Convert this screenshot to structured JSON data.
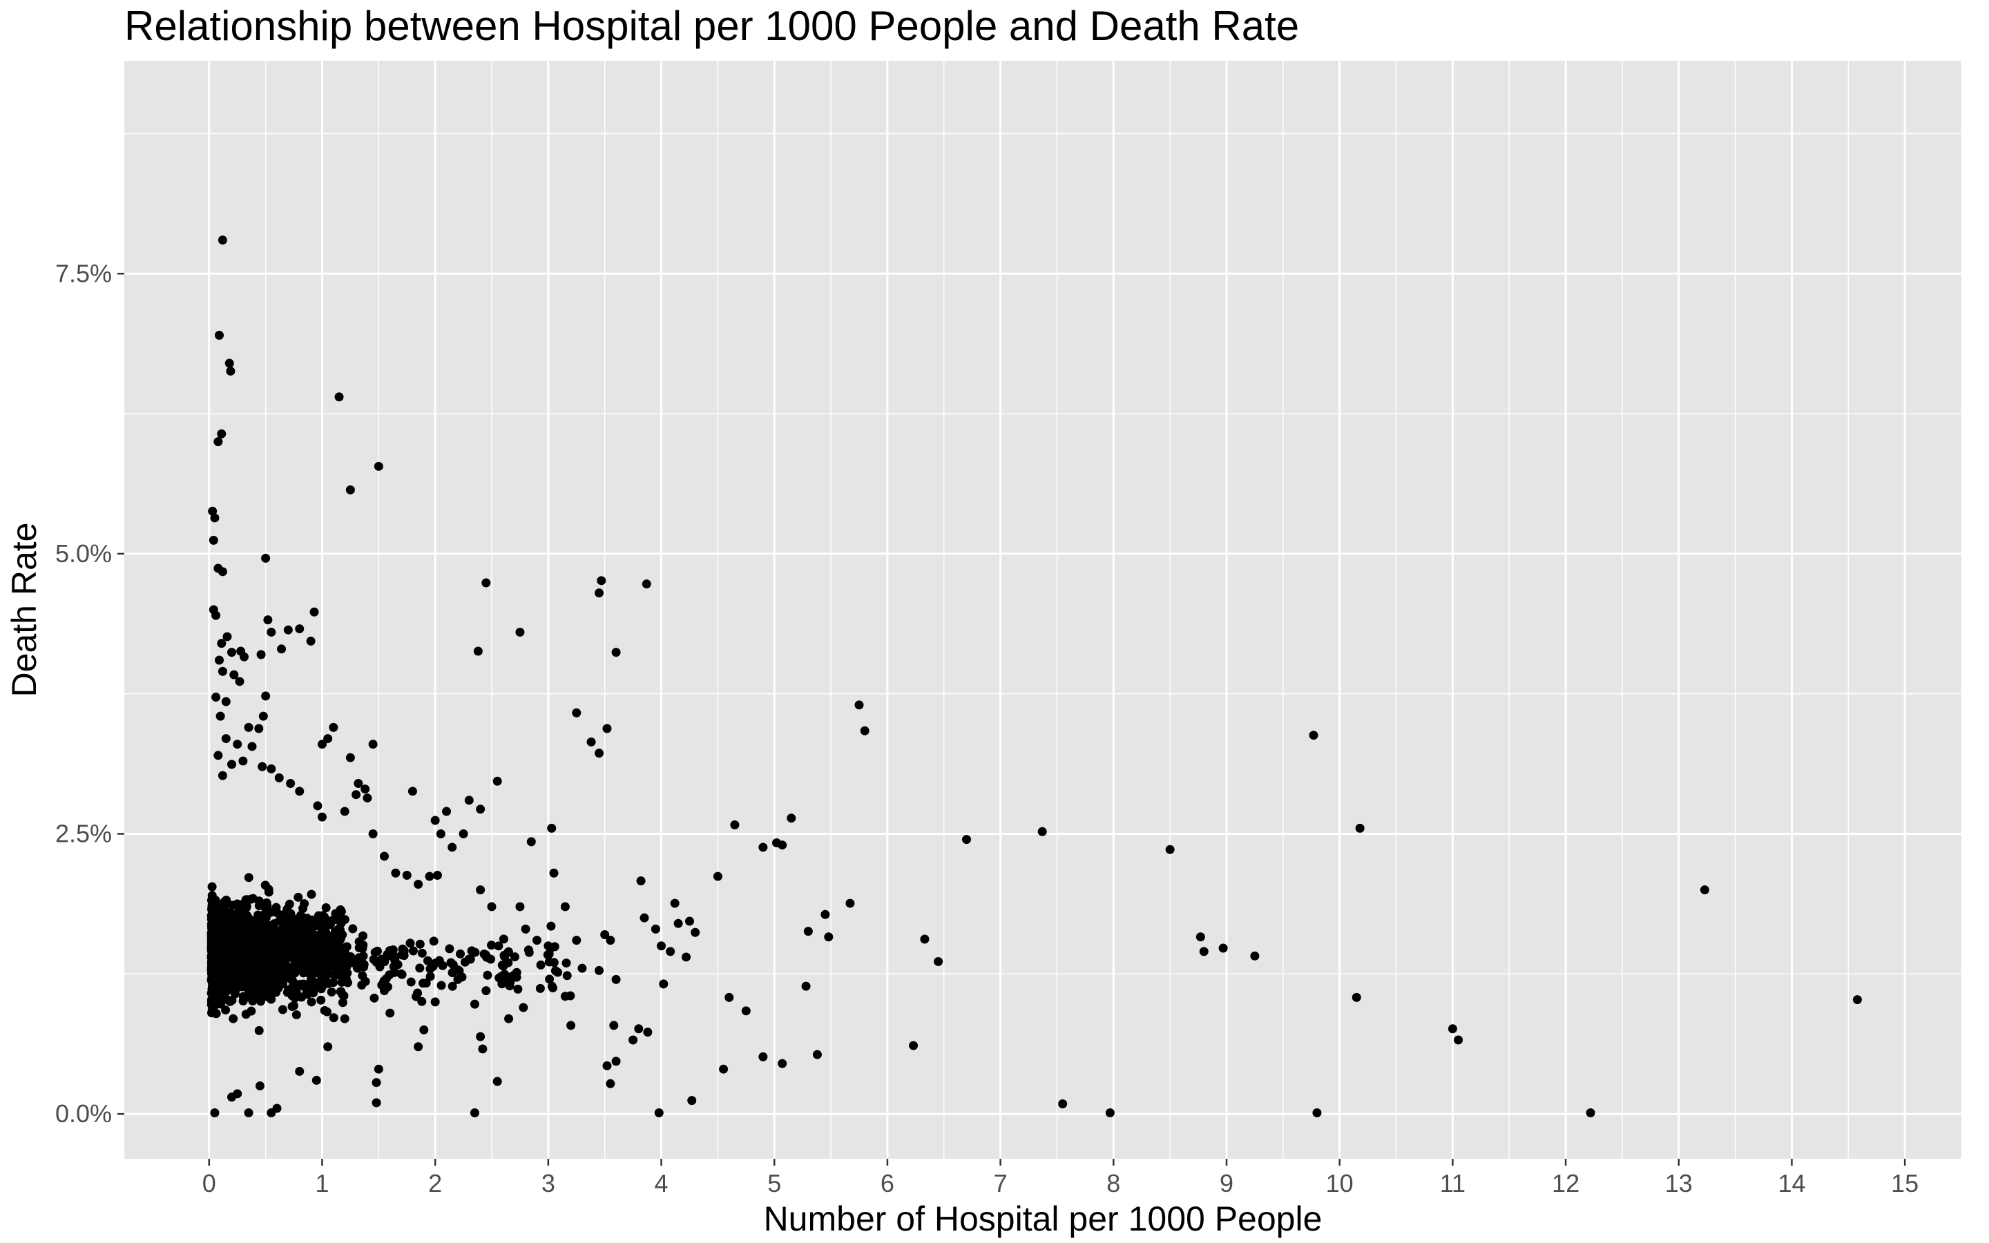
{
  "chart_data": {
    "type": "scatter",
    "title": "Relationship between Hospital per 1000 People and Death Rate",
    "xlabel": "Number of Hospital per 1000 People",
    "ylabel": "Death Rate",
    "xlim": [
      -0.75,
      15.5
    ],
    "ylim": [
      -0.4,
      9.4
    ],
    "x_ticks": [
      0,
      1,
      2,
      3,
      4,
      5,
      6,
      7,
      8,
      9,
      10,
      11,
      12,
      13,
      14,
      15
    ],
    "x_tick_labels": [
      "0",
      "1",
      "2",
      "3",
      "4",
      "5",
      "6",
      "7",
      "8",
      "9",
      "10",
      "11",
      "12",
      "13",
      "14",
      "15"
    ],
    "y_ticks": [
      0,
      2.5,
      5,
      7.5
    ],
    "y_tick_labels": [
      "0.0%",
      "2.5%",
      "5.0%",
      "7.5%"
    ],
    "grid": true,
    "colors": {
      "panel": "#e5e5e5",
      "grid": "#ffffff",
      "points": "#000000"
    },
    "points": [
      [
        0.12,
        7.8
      ],
      [
        0.09,
        6.95
      ],
      [
        0.18,
        6.7
      ],
      [
        0.19,
        6.63
      ],
      [
        0.11,
        6.07
      ],
      [
        0.08,
        6.0
      ],
      [
        1.15,
        6.4
      ],
      [
        1.25,
        5.57
      ],
      [
        1.5,
        5.78
      ],
      [
        0.03,
        5.38
      ],
      [
        0.05,
        5.32
      ],
      [
        0.04,
        5.12
      ],
      [
        0.08,
        4.87
      ],
      [
        0.12,
        4.84
      ],
      [
        0.5,
        4.96
      ],
      [
        0.93,
        4.48
      ],
      [
        0.04,
        4.5
      ],
      [
        0.06,
        4.45
      ],
      [
        0.52,
        4.41
      ],
      [
        0.55,
        4.3
      ],
      [
        0.7,
        4.32
      ],
      [
        0.8,
        4.33
      ],
      [
        0.9,
        4.22
      ],
      [
        0.64,
        4.15
      ],
      [
        0.46,
        4.1
      ],
      [
        0.28,
        4.13
      ],
      [
        0.31,
        4.08
      ],
      [
        0.16,
        4.26
      ],
      [
        0.11,
        4.2
      ],
      [
        0.2,
        4.12
      ],
      [
        0.09,
        4.05
      ],
      [
        0.12,
        3.95
      ],
      [
        0.22,
        3.92
      ],
      [
        0.27,
        3.86
      ],
      [
        0.06,
        3.72
      ],
      [
        0.15,
        3.68
      ],
      [
        0.5,
        3.73
      ],
      [
        0.48,
        3.55
      ],
      [
        0.1,
        3.55
      ],
      [
        0.35,
        3.45
      ],
      [
        0.44,
        3.44
      ],
      [
        0.15,
        3.35
      ],
      [
        0.25,
        3.3
      ],
      [
        0.38,
        3.28
      ],
      [
        0.08,
        3.2
      ],
      [
        0.2,
        3.12
      ],
      [
        0.3,
        3.15
      ],
      [
        0.47,
        3.1
      ],
      [
        0.55,
        3.08
      ],
      [
        0.62,
        3.0
      ],
      [
        0.72,
        2.95
      ],
      [
        0.8,
        2.88
      ],
      [
        0.12,
        3.02
      ],
      [
        1.1,
        3.45
      ],
      [
        1.05,
        3.35
      ],
      [
        1.0,
        3.3
      ],
      [
        1.45,
        3.3
      ],
      [
        1.25,
        3.18
      ],
      [
        1.32,
        2.95
      ],
      [
        1.38,
        2.9
      ],
      [
        1.3,
        2.85
      ],
      [
        1.4,
        2.82
      ],
      [
        0.96,
        2.75
      ],
      [
        1.0,
        2.65
      ],
      [
        1.2,
        2.7
      ],
      [
        1.45,
        2.5
      ],
      [
        2.45,
        4.74
      ],
      [
        2.38,
        4.13
      ],
      [
        2.75,
        4.3
      ],
      [
        3.25,
        3.58
      ],
      [
        3.38,
        3.32
      ],
      [
        3.45,
        3.22
      ],
      [
        3.52,
        3.44
      ],
      [
        3.45,
        4.65
      ],
      [
        3.47,
        4.76
      ],
      [
        3.87,
        4.73
      ],
      [
        3.6,
        4.12
      ],
      [
        1.8,
        2.88
      ],
      [
        2.0,
        2.62
      ],
      [
        2.05,
        2.5
      ],
      [
        2.1,
        2.7
      ],
      [
        2.25,
        2.5
      ],
      [
        2.3,
        2.8
      ],
      [
        2.4,
        2.72
      ],
      [
        2.55,
        2.97
      ],
      [
        2.85,
        2.43
      ],
      [
        3.03,
        2.55
      ],
      [
        3.05,
        2.15
      ],
      [
        1.55,
        2.3
      ],
      [
        1.65,
        2.15
      ],
      [
        1.75,
        2.13
      ],
      [
        1.85,
        2.05
      ],
      [
        1.95,
        2.12
      ],
      [
        2.02,
        2.13
      ],
      [
        2.15,
        2.38
      ],
      [
        2.4,
        2.0
      ],
      [
        2.5,
        1.85
      ],
      [
        2.75,
        1.85
      ],
      [
        2.8,
        1.65
      ],
      [
        2.9,
        1.55
      ],
      [
        3.0,
        1.5
      ],
      [
        3.15,
        1.85
      ],
      [
        3.25,
        1.55
      ],
      [
        3.3,
        1.3
      ],
      [
        3.45,
        1.28
      ],
      [
        3.5,
        1.6
      ],
      [
        3.55,
        1.55
      ],
      [
        3.85,
        1.75
      ],
      [
        3.82,
        2.08
      ],
      [
        3.95,
        1.65
      ],
      [
        4.0,
        1.5
      ],
      [
        4.08,
        1.45
      ],
      [
        4.12,
        1.88
      ],
      [
        4.15,
        1.7
      ],
      [
        4.25,
        1.72
      ],
      [
        4.3,
        1.62
      ],
      [
        4.22,
        1.4
      ],
      [
        4.5,
        2.12
      ],
      [
        4.65,
        2.58
      ],
      [
        4.9,
        2.38
      ],
      [
        5.02,
        2.42
      ],
      [
        5.07,
        2.4
      ],
      [
        5.15,
        2.64
      ],
      [
        5.3,
        1.63
      ],
      [
        5.45,
        1.78
      ],
      [
        5.48,
        1.58
      ],
      [
        5.67,
        1.88
      ],
      [
        5.75,
        3.65
      ],
      [
        5.8,
        3.42
      ],
      [
        6.33,
        1.56
      ],
      [
        6.45,
        1.36
      ],
      [
        6.7,
        2.45
      ],
      [
        7.37,
        2.52
      ],
      [
        8.5,
        2.36
      ],
      [
        8.77,
        1.58
      ],
      [
        8.8,
        1.45
      ],
      [
        8.97,
        1.48
      ],
      [
        9.25,
        1.41
      ],
      [
        9.77,
        3.38
      ],
      [
        10.18,
        2.55
      ],
      [
        10.15,
        1.04
      ],
      [
        11.0,
        0.76
      ],
      [
        11.05,
        0.66
      ],
      [
        13.23,
        2.0
      ],
      [
        14.58,
        1.02
      ],
      [
        12.22,
        0.01
      ],
      [
        9.8,
        0.01
      ],
      [
        7.97,
        0.01
      ],
      [
        7.55,
        0.09
      ],
      [
        6.23,
        0.61
      ],
      [
        5.38,
        0.53
      ],
      [
        5.07,
        0.45
      ],
      [
        4.9,
        0.51
      ],
      [
        4.75,
        0.92
      ],
      [
        4.6,
        1.04
      ],
      [
        4.55,
        0.4
      ],
      [
        4.27,
        0.12
      ],
      [
        3.98,
        0.01
      ],
      [
        3.88,
        0.73
      ],
      [
        3.8,
        0.76
      ],
      [
        3.75,
        0.66
      ],
      [
        3.6,
        0.47
      ],
      [
        3.55,
        0.27
      ],
      [
        3.52,
        0.43
      ],
      [
        3.58,
        0.79
      ],
      [
        3.6,
        1.2
      ],
      [
        3.15,
        1.05
      ],
      [
        3.2,
        0.79
      ],
      [
        2.93,
        1.12
      ],
      [
        2.72,
        1.22
      ],
      [
        2.65,
        0.85
      ],
      [
        2.78,
        0.95
      ],
      [
        2.55,
        0.29
      ],
      [
        2.42,
        0.58
      ],
      [
        2.4,
        0.69
      ],
      [
        2.35,
        0.01
      ],
      [
        1.48,
        0.1
      ],
      [
        1.48,
        0.28
      ],
      [
        1.5,
        0.4
      ],
      [
        4.02,
        1.16
      ],
      [
        5.28,
        1.14
      ],
      [
        2.35,
        0.98
      ],
      [
        2.45,
        1.1
      ],
      [
        2.2,
        1.2
      ],
      [
        2.0,
        1.0
      ],
      [
        1.9,
        0.75
      ],
      [
        1.85,
        0.6
      ],
      [
        1.7,
        1.25
      ],
      [
        1.6,
        0.9
      ],
      [
        1.55,
        1.1
      ],
      [
        1.35,
        1.15
      ],
      [
        1.2,
        0.85
      ],
      [
        1.05,
        0.6
      ],
      [
        0.95,
        0.3
      ],
      [
        0.6,
        0.05
      ],
      [
        0.55,
        0.01
      ],
      [
        0.35,
        0.01
      ],
      [
        0.05,
        0.01
      ],
      [
        0.2,
        0.15
      ],
      [
        0.25,
        0.18
      ],
      [
        0.45,
        0.25
      ],
      [
        0.8,
        0.38
      ]
    ]
  }
}
